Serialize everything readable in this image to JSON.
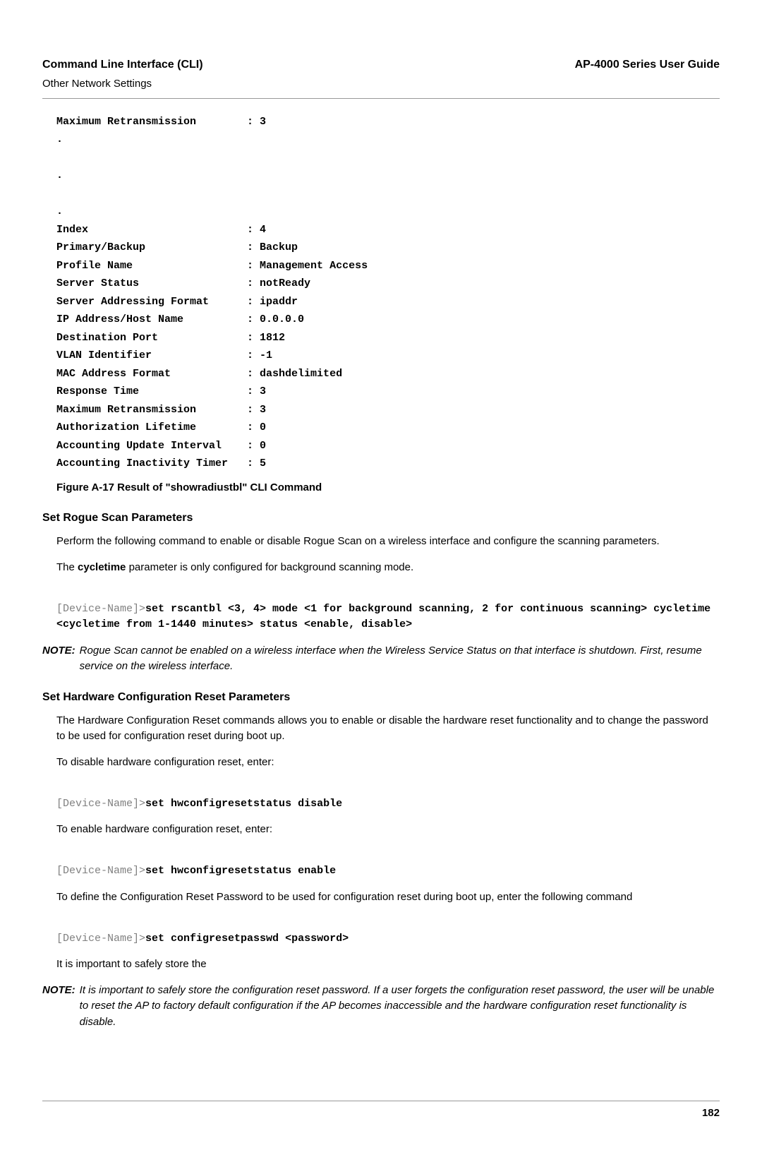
{
  "header": {
    "left_title": "Command Line Interface (CLI)",
    "left_sub": "Other Network Settings",
    "right_title": "AP-4000 Series User Guide"
  },
  "cli": {
    "lines": [
      "Maximum Retransmission        : 3",
      ".",
      "",
      ".",
      "",
      ".",
      "Index                         : 4",
      "Primary/Backup                : Backup",
      "Profile Name                  : Management Access",
      "Server Status                 : notReady",
      "Server Addressing Format      : ipaddr",
      "IP Address/Host Name          : 0.0.0.0",
      "Destination Port              : 1812",
      "VLAN Identifier               : -1",
      "MAC Address Format            : dashdelimited",
      "Response Time                 : 3",
      "Maximum Retransmission        : 3",
      "Authorization Lifetime        : 0",
      "Accounting Update Interval    : 0",
      "Accounting Inactivity Timer   : 5"
    ],
    "figure_caption": "Figure A-17 Result of \"showradiustbl\" CLI Command"
  },
  "rogue": {
    "title": "Set Rogue Scan Parameters",
    "p1": "Perform the following command to enable or disable Rogue Scan on a wireless interface and configure the scanning parameters.",
    "p2_pre": "The ",
    "p2_bold": "cycletime",
    "p2_post": " parameter is only configured for background scanning mode.",
    "cmd_prompt": "[Device-Name]>",
    "cmd_bold": "set rscantbl <3, 4> mode <1 for background scanning, 2 for continuous scanning> cycletime <cycletime from 1-1440 minutes> status <enable, disable>",
    "note_label": "NOTE:",
    "note_text": "Rogue Scan cannot be enabled on a wireless interface when the Wireless Service Status on that interface is shutdown. First, resume service on the wireless interface."
  },
  "hw": {
    "title": "Set Hardware Configuration Reset Parameters",
    "p1": "The Hardware Configuration Reset commands allows you to enable or disable the hardware reset functionality and to change the password to be used for configuration reset during boot up.",
    "p2": "To disable hardware configuration reset, enter:",
    "cmd1_prompt": "[Device-Name]>",
    "cmd1_bold": "set hwconfigresetstatus disable",
    "p3": "To enable hardware configuration reset, enter:",
    "cmd2_prompt": "[Device-Name]>",
    "cmd2_bold": "set hwconfigresetstatus enable",
    "p4": "To define the Configuration Reset Password to be used for configuration reset during boot up, enter the following command",
    "cmd3_prompt": "[Device-Name]>",
    "cmd3_bold": "set configresetpasswd <password>",
    "p5": "It is important to safely store the",
    "note_label": "NOTE:",
    "note_text": "It is important to safely store the configuration reset password. If a user forgets the configuration reset password, the user will be unable to reset the AP to factory default configuration if the AP becomes inaccessible and the hardware configuration reset functionality is disable."
  },
  "page_number": "182"
}
